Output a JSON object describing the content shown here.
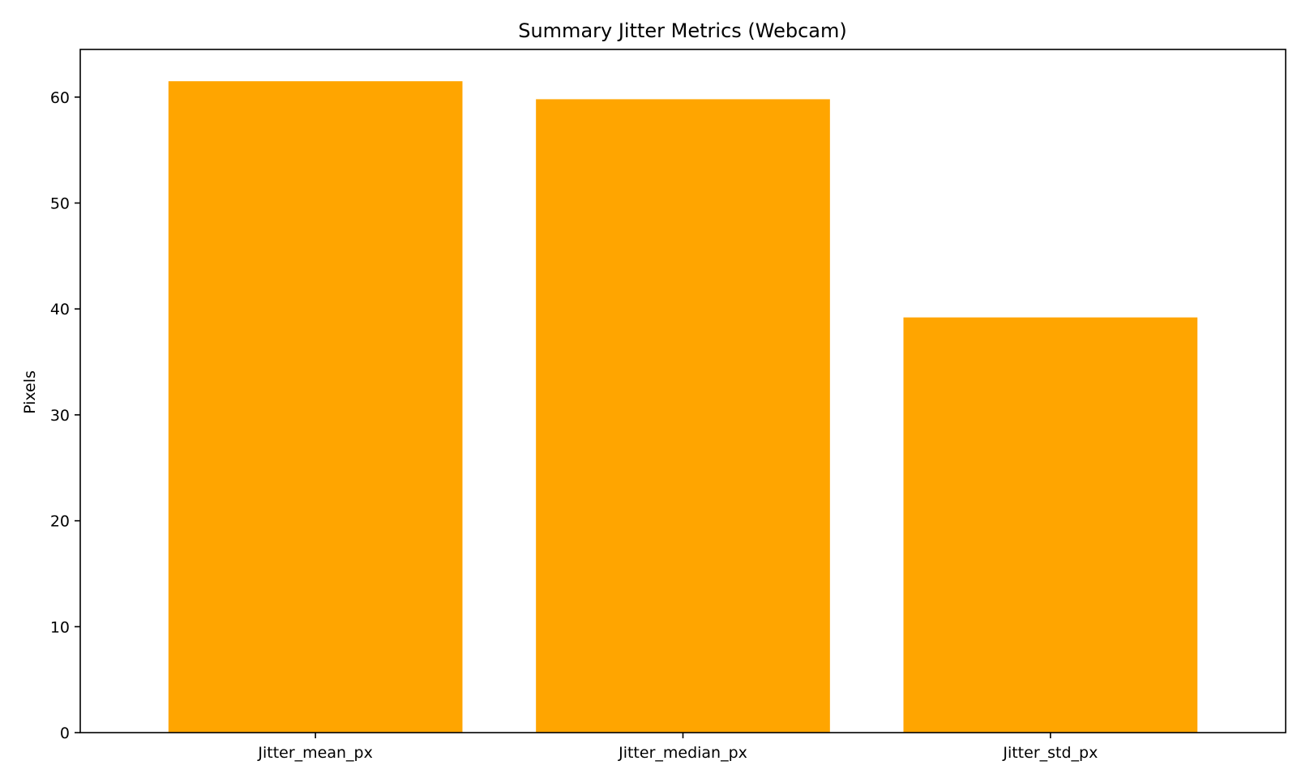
{
  "chart_data": {
    "type": "bar",
    "title": "Summary Jitter Metrics (Webcam)",
    "xlabel": "",
    "ylabel": "Pixels",
    "categories": [
      "Jitter_mean_px",
      "Jitter_median_px",
      "Jitter_std_px"
    ],
    "values": [
      61.5,
      59.8,
      39.2
    ],
    "ylim": [
      0,
      64.5
    ],
    "yticks": [
      0,
      10,
      20,
      30,
      40,
      50,
      60
    ],
    "bar_color": "#ffa500",
    "grid": false,
    "legend": "none"
  }
}
